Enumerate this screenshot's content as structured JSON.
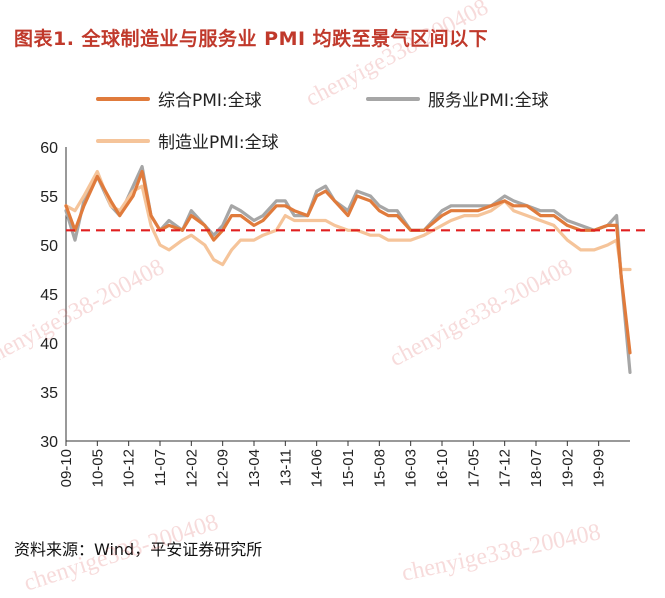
{
  "title": "图表1.  全球制造业与服务业 PMI 均跌至景气区间以下",
  "source": "资料来源：Wind，平安证券研究所",
  "watermark": "chenyige338-200408",
  "colors": {
    "composite": "#e07b3c",
    "services": "#a6a6a6",
    "manufacturing": "#f5c49a",
    "threshold": "#e02020",
    "title": "#c0392b"
  },
  "chart_data": {
    "type": "line",
    "ylim": [
      30,
      60
    ],
    "yticks": [
      30,
      35,
      40,
      45,
      50,
      55,
      60
    ],
    "xticks": [
      "09-10",
      "10-05",
      "10-12",
      "11-07",
      "12-02",
      "12-09",
      "13-04",
      "13-11",
      "14-06",
      "15-01",
      "15-08",
      "16-03",
      "16-10",
      "17-05",
      "17-12",
      "18-07",
      "19-02",
      "19-09"
    ],
    "x_range": [
      "09-10",
      "20-04"
    ],
    "reference_line": {
      "y": 51.5,
      "style": "dashed"
    },
    "series": [
      {
        "name": "综合PMI:全球",
        "key": "composite",
        "points": [
          [
            "09-10",
            54.0
          ],
          [
            "09-12",
            51.5
          ],
          [
            "10-02",
            54.0
          ],
          [
            "10-05",
            57.0
          ],
          [
            "10-08",
            54.5
          ],
          [
            "10-10",
            53.0
          ],
          [
            "11-01",
            55.0
          ],
          [
            "11-03",
            57.5
          ],
          [
            "11-05",
            53.0
          ],
          [
            "11-07",
            51.5
          ],
          [
            "11-09",
            52.0
          ],
          [
            "11-12",
            51.5
          ],
          [
            "12-02",
            53.0
          ],
          [
            "12-05",
            52.0
          ],
          [
            "12-07",
            50.5
          ],
          [
            "12-09",
            51.5
          ],
          [
            "12-11",
            53.0
          ],
          [
            "13-01",
            53.0
          ],
          [
            "13-04",
            52.0
          ],
          [
            "13-06",
            52.5
          ],
          [
            "13-09",
            54.0
          ],
          [
            "13-11",
            54.0
          ],
          [
            "14-01",
            53.5
          ],
          [
            "14-04",
            53.0
          ],
          [
            "14-06",
            55.0
          ],
          [
            "14-08",
            55.5
          ],
          [
            "14-10",
            54.5
          ],
          [
            "15-01",
            53.0
          ],
          [
            "15-03",
            55.0
          ],
          [
            "15-06",
            54.5
          ],
          [
            "15-08",
            53.5
          ],
          [
            "15-10",
            53.0
          ],
          [
            "15-12",
            53.0
          ],
          [
            "16-03",
            51.5
          ],
          [
            "16-06",
            51.5
          ],
          [
            "16-10",
            53.0
          ],
          [
            "16-12",
            53.5
          ],
          [
            "17-03",
            53.5
          ],
          [
            "17-06",
            53.5
          ],
          [
            "17-09",
            54.0
          ],
          [
            "17-12",
            54.5
          ],
          [
            "18-02",
            54.0
          ],
          [
            "18-05",
            54.0
          ],
          [
            "18-08",
            53.0
          ],
          [
            "18-11",
            53.0
          ],
          [
            "19-02",
            52.0
          ],
          [
            "19-05",
            51.5
          ],
          [
            "19-08",
            51.5
          ],
          [
            "19-11",
            52.0
          ],
          [
            "20-01",
            52.0
          ],
          [
            "20-02",
            47.0
          ],
          [
            "20-04",
            39.0
          ]
        ]
      },
      {
        "name": "服务业PMI:全球",
        "key": "services",
        "points": [
          [
            "09-10",
            53.5
          ],
          [
            "09-12",
            50.5
          ],
          [
            "10-02",
            54.5
          ],
          [
            "10-05",
            57.0
          ],
          [
            "10-08",
            54.0
          ],
          [
            "10-10",
            53.0
          ],
          [
            "11-01",
            56.0
          ],
          [
            "11-03",
            58.0
          ],
          [
            "11-05",
            53.0
          ],
          [
            "11-07",
            51.5
          ],
          [
            "11-09",
            52.5
          ],
          [
            "11-12",
            51.5
          ],
          [
            "12-02",
            53.5
          ],
          [
            "12-05",
            52.0
          ],
          [
            "12-07",
            51.0
          ],
          [
            "12-09",
            52.0
          ],
          [
            "12-11",
            54.0
          ],
          [
            "13-01",
            53.5
          ],
          [
            "13-04",
            52.5
          ],
          [
            "13-06",
            53.0
          ],
          [
            "13-09",
            54.5
          ],
          [
            "13-11",
            54.5
          ],
          [
            "14-01",
            53.0
          ],
          [
            "14-04",
            53.0
          ],
          [
            "14-06",
            55.5
          ],
          [
            "14-08",
            56.0
          ],
          [
            "14-10",
            54.5
          ],
          [
            "15-01",
            53.5
          ],
          [
            "15-03",
            55.5
          ],
          [
            "15-06",
            55.0
          ],
          [
            "15-08",
            54.0
          ],
          [
            "15-10",
            53.5
          ],
          [
            "15-12",
            53.5
          ],
          [
            "16-03",
            51.5
          ],
          [
            "16-06",
            51.5
          ],
          [
            "16-10",
            53.5
          ],
          [
            "16-12",
            54.0
          ],
          [
            "17-03",
            54.0
          ],
          [
            "17-06",
            54.0
          ],
          [
            "17-09",
            54.0
          ],
          [
            "17-12",
            55.0
          ],
          [
            "18-02",
            54.5
          ],
          [
            "18-05",
            54.0
          ],
          [
            "18-08",
            53.5
          ],
          [
            "18-11",
            53.5
          ],
          [
            "19-02",
            52.5
          ],
          [
            "19-05",
            52.0
          ],
          [
            "19-08",
            51.5
          ],
          [
            "19-11",
            52.0
          ],
          [
            "20-01",
            53.0
          ],
          [
            "20-02",
            47.0
          ],
          [
            "20-04",
            37.0
          ]
        ]
      },
      {
        "name": "制造业PMI:全球",
        "key": "manufacturing",
        "points": [
          [
            "09-10",
            54.0
          ],
          [
            "09-12",
            53.5
          ],
          [
            "10-02",
            55.0
          ],
          [
            "10-05",
            57.5
          ],
          [
            "10-08",
            54.0
          ],
          [
            "10-10",
            53.5
          ],
          [
            "11-01",
            55.5
          ],
          [
            "11-03",
            56.0
          ],
          [
            "11-05",
            52.0
          ],
          [
            "11-07",
            50.0
          ],
          [
            "11-09",
            49.5
          ],
          [
            "11-12",
            50.5
          ],
          [
            "12-02",
            51.0
          ],
          [
            "12-05",
            50.0
          ],
          [
            "12-07",
            48.5
          ],
          [
            "12-09",
            48.0
          ],
          [
            "12-11",
            49.5
          ],
          [
            "13-01",
            50.5
          ],
          [
            "13-04",
            50.5
          ],
          [
            "13-06",
            51.0
          ],
          [
            "13-09",
            51.5
          ],
          [
            "13-11",
            53.0
          ],
          [
            "14-01",
            52.5
          ],
          [
            "14-04",
            52.5
          ],
          [
            "14-06",
            52.5
          ],
          [
            "14-08",
            52.5
          ],
          [
            "14-10",
            52.0
          ],
          [
            "15-01",
            51.5
          ],
          [
            "15-03",
            51.5
          ],
          [
            "15-06",
            51.0
          ],
          [
            "15-08",
            51.0
          ],
          [
            "15-10",
            50.5
          ],
          [
            "15-12",
            50.5
          ],
          [
            "16-03",
            50.5
          ],
          [
            "16-06",
            51.0
          ],
          [
            "16-10",
            52.0
          ],
          [
            "16-12",
            52.5
          ],
          [
            "17-03",
            53.0
          ],
          [
            "17-06",
            53.0
          ],
          [
            "17-09",
            53.5
          ],
          [
            "17-12",
            54.5
          ],
          [
            "18-02",
            53.5
          ],
          [
            "18-05",
            53.0
          ],
          [
            "18-08",
            52.5
          ],
          [
            "18-11",
            52.0
          ],
          [
            "19-02",
            50.5
          ],
          [
            "19-05",
            49.5
          ],
          [
            "19-08",
            49.5
          ],
          [
            "19-11",
            50.0
          ],
          [
            "20-01",
            50.5
          ],
          [
            "20-02",
            47.5
          ],
          [
            "20-04",
            47.5
          ]
        ]
      }
    ]
  }
}
